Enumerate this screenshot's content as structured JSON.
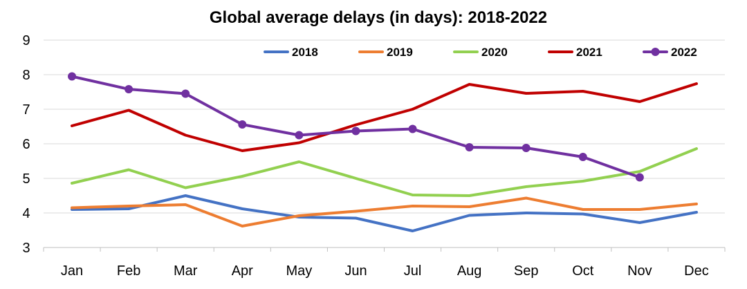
{
  "chart_data": {
    "type": "line",
    "title": "Global average delays (in days): 2018-2022",
    "xlabel": "",
    "ylabel": "",
    "categories": [
      "Jan",
      "Feb",
      "Mar",
      "Apr",
      "May",
      "Jun",
      "Jul",
      "Aug",
      "Sep",
      "Oct",
      "Nov",
      "Dec"
    ],
    "ylim": [
      3,
      9
    ],
    "yticks": [
      "3",
      "4",
      "5",
      "6",
      "7",
      "8",
      "9"
    ],
    "grid": true,
    "legend_position": "top",
    "series": [
      {
        "name": "2018",
        "color": "#4472C4",
        "markers": false,
        "values": [
          4.1,
          4.12,
          4.5,
          4.12,
          3.88,
          3.85,
          3.48,
          3.93,
          4.0,
          3.97,
          3.72,
          4.02
        ]
      },
      {
        "name": "2019",
        "color": "#ED7D31",
        "markers": false,
        "values": [
          4.15,
          4.2,
          4.24,
          3.62,
          3.92,
          4.05,
          4.2,
          4.18,
          4.43,
          4.1,
          4.1,
          4.26
        ]
      },
      {
        "name": "2020",
        "color": "#92D050",
        "markers": false,
        "values": [
          4.86,
          5.25,
          4.73,
          5.06,
          5.48,
          5.0,
          4.52,
          4.5,
          4.76,
          4.92,
          5.2,
          5.86
        ]
      },
      {
        "name": "2021",
        "color": "#C00000",
        "markers": false,
        "values": [
          6.52,
          6.97,
          6.25,
          5.8,
          6.03,
          6.55,
          7.0,
          7.72,
          7.46,
          7.52,
          7.22,
          7.74
        ]
      },
      {
        "name": "2022",
        "color": "#7030A0",
        "markers": true,
        "values": [
          7.95,
          7.58,
          7.45,
          6.56,
          6.25,
          6.37,
          6.43,
          5.9,
          5.88,
          5.62,
          5.03,
          null
        ]
      }
    ]
  }
}
